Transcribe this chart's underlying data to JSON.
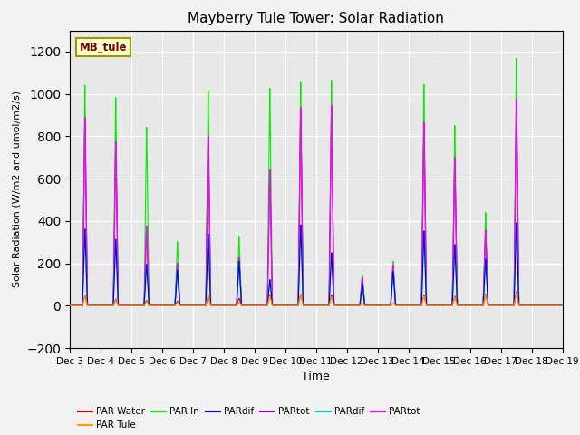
{
  "title": "Mayberry Tule Tower: Solar Radiation",
  "ylabel": "Solar Radiation (W/m2 and umol/m2/s)",
  "xlabel": "Time",
  "ylim": [
    -200,
    1300
  ],
  "yticks": [
    -200,
    0,
    200,
    400,
    600,
    800,
    1000,
    1200
  ],
  "background_color": "#f2f2f2",
  "plot_bg_color": "#e8e8e8",
  "legend_label": "MB_tule",
  "n_days": 16,
  "day_start": 3,
  "day_end": 18,
  "peak_heights": {
    "day3": {
      "green": 1065,
      "magenta": 910,
      "red": 50,
      "orange": 52,
      "cyan": 370,
      "blue": 370,
      "purple": 910
    },
    "day4": {
      "green": 1005,
      "magenta": 790,
      "red": 32,
      "orange": 36,
      "cyan": 320,
      "blue": 320,
      "purple": 790
    },
    "day5": {
      "green": 862,
      "magenta": 385,
      "red": 26,
      "orange": 22,
      "cyan": 200,
      "blue": 200,
      "purple": 385
    },
    "day6": {
      "green": 310,
      "magenta": 205,
      "red": 22,
      "orange": 16,
      "cyan": 170,
      "blue": 170,
      "purple": 205
    },
    "day7": {
      "green": 1040,
      "magenta": 820,
      "red": 46,
      "orange": 52,
      "cyan": 345,
      "blue": 345,
      "purple": 820
    },
    "day8": {
      "green": 335,
      "magenta": 230,
      "red": 36,
      "orange": 16,
      "cyan": 215,
      "blue": 215,
      "purple": 230
    },
    "day9": {
      "green": 1050,
      "magenta": 655,
      "red": 52,
      "orange": 46,
      "cyan": 125,
      "blue": 125,
      "purple": 655
    },
    "day10": {
      "green": 1080,
      "magenta": 955,
      "red": 56,
      "orange": 56,
      "cyan": 390,
      "blue": 390,
      "purple": 955
    },
    "day11": {
      "green": 1088,
      "magenta": 965,
      "red": 52,
      "orange": 42,
      "cyan": 255,
      "blue": 255,
      "purple": 965
    },
    "day12": {
      "green": 150,
      "magenta": 135,
      "red": 11,
      "orange": 11,
      "cyan": 105,
      "blue": 105,
      "purple": 135
    },
    "day13": {
      "green": 215,
      "magenta": 195,
      "red": 11,
      "orange": 11,
      "cyan": 165,
      "blue": 165,
      "purple": 195
    },
    "day14": {
      "green": 1068,
      "magenta": 885,
      "red": 52,
      "orange": 46,
      "cyan": 360,
      "blue": 360,
      "purple": 885
    },
    "day15": {
      "green": 870,
      "magenta": 715,
      "red": 46,
      "orange": 42,
      "cyan": 295,
      "blue": 295,
      "purple": 715
    },
    "day16": {
      "green": 450,
      "magenta": 365,
      "red": 56,
      "orange": 52,
      "cyan": 225,
      "blue": 225,
      "purple": 365
    },
    "day17": {
      "green": 1195,
      "magenta": 995,
      "red": 66,
      "orange": 62,
      "cyan": 400,
      "blue": 400,
      "purple": 995
    }
  }
}
